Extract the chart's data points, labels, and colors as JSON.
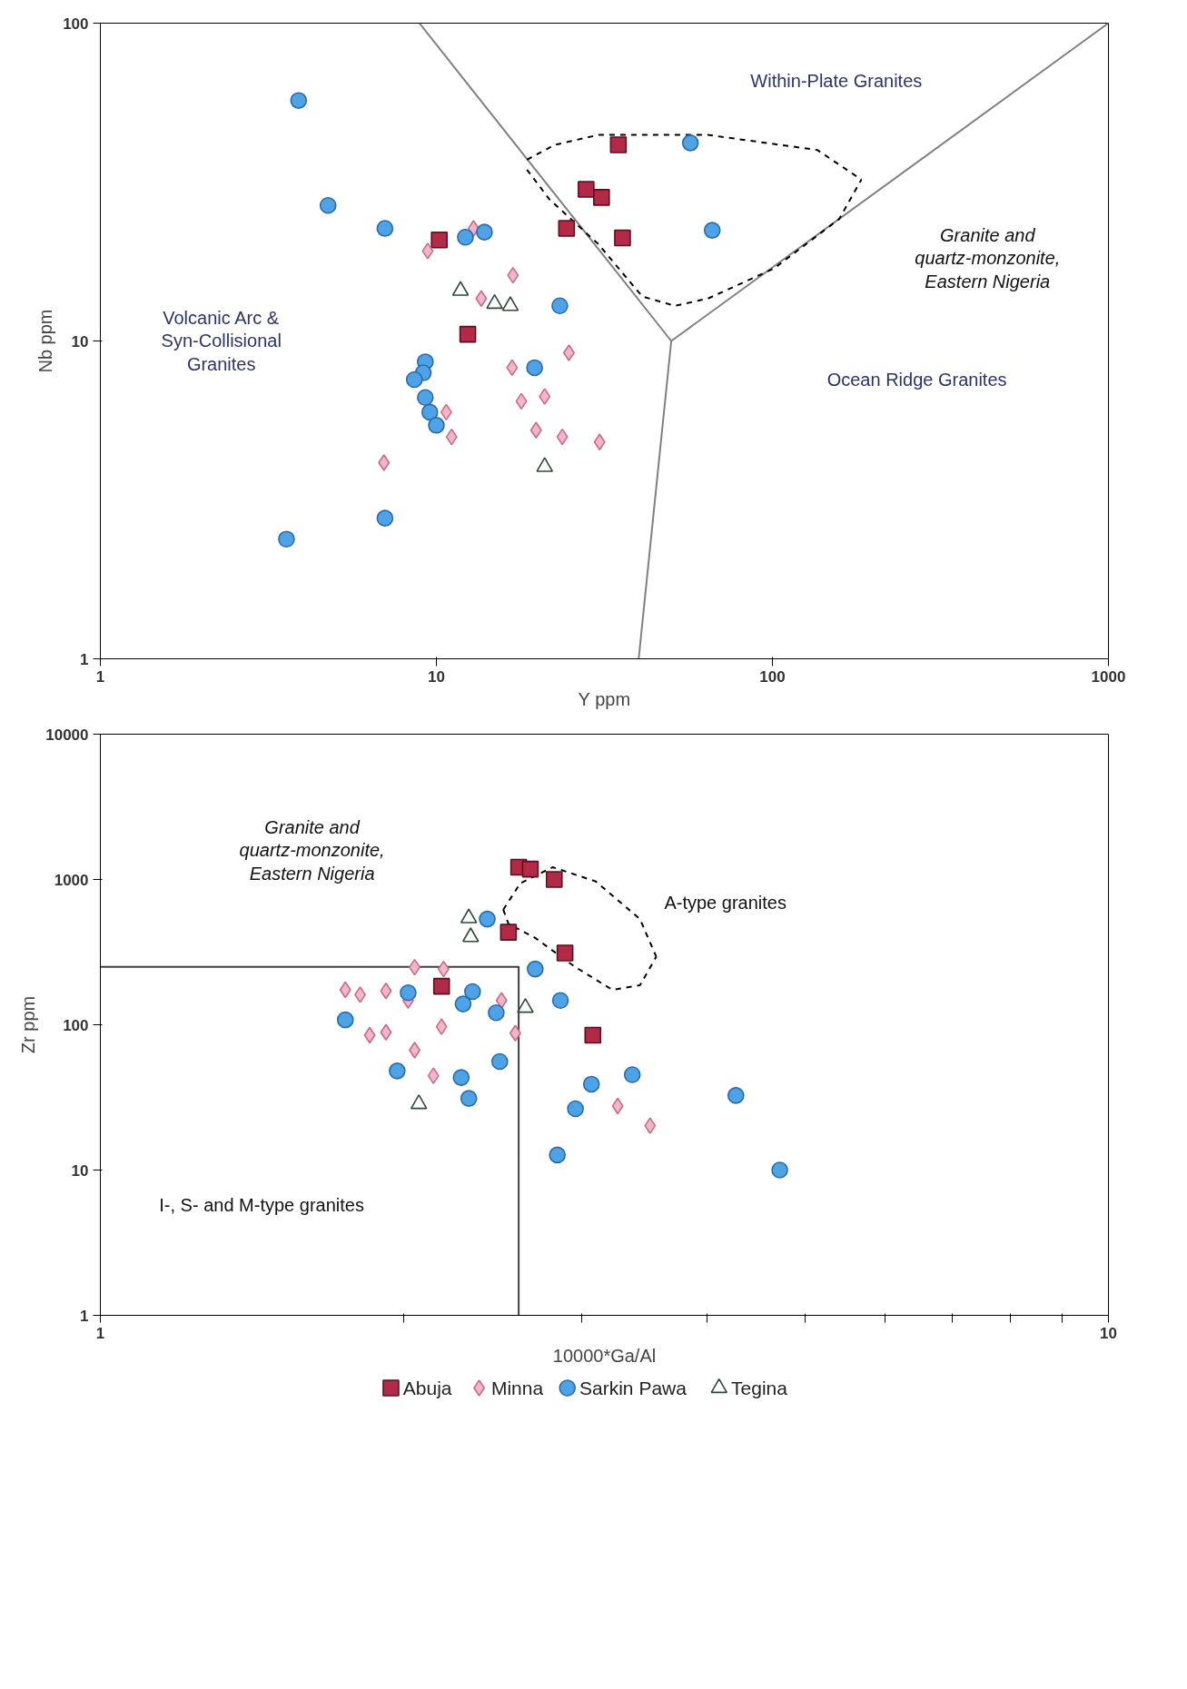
{
  "chart_data": [
    {
      "type": "scatter",
      "xlabel": "Y ppm",
      "ylabel": "Nb ppm",
      "log": "xy",
      "grid": false,
      "xlim": [
        1,
        1000
      ],
      "ylim": [
        1,
        100
      ],
      "xticks": [
        1,
        10,
        100,
        1000
      ],
      "yticks": [
        1,
        10,
        100
      ],
      "annotations": [
        "Within-Plate Granites",
        "Volcanic Arc &\nSyn-Collisional\nGranites",
        "Ocean Ridge Granites",
        "Granite and\nquartz-monzonite,\nEastern Nigeria"
      ],
      "series": [
        {
          "type": "line",
          "color": "#7f7f7f",
          "line_style": "solid",
          "x": [
            8.9,
            50,
            1000
          ],
          "values": [
            100,
            10,
            100
          ]
        },
        {
          "type": "line",
          "color": "#7f7f7f",
          "line_style": "solid",
          "x": [
            40,
            50
          ],
          "values": [
            1,
            10
          ]
        },
        {
          "type": "line",
          "color": "#000000",
          "line_style": "dashed",
          "x": [
            18.6,
            22.5,
            30.3,
            64.3,
            136,
            184
          ],
          "values": [
            37.2,
            41.4,
            44.5,
            44.5,
            39.9,
            32.2
          ]
        },
        {
          "type": "line",
          "color": "#000000",
          "line_style": "dashed",
          "x": [
            18.6,
            21.7,
            30.3,
            41,
            51.3,
            64.3,
            101,
            158,
            184
          ],
          "values": [
            34.6,
            27.9,
            20.2,
            13.8,
            12.9,
            13.6,
            16.9,
            24.2,
            32.2
          ]
        },
        {
          "color": "#b22a45",
          "marker": "square",
          "x": [
            34.8,
            27.9,
            31.0,
            24.4,
            35.8,
            10.2,
            12.4
          ],
          "values": [
            41.4,
            30.0,
            28.3,
            22.6,
            21.1,
            20.8,
            10.5
          ]
        },
        {
          "color": "#f2b6c6",
          "marker": "diamond",
          "x": [
            9.42,
            12.9,
            16.9,
            13.6,
            24.8,
            16.8,
            17.9,
            21.0,
            10.7,
            11.1,
            19.8,
            23.7,
            30.6,
            6.98
          ],
          "values": [
            19.2,
            22.6,
            16.1,
            13.6,
            9.18,
            8.24,
            6.46,
            6.69,
            5.97,
            4.99,
            5.24,
            4.99,
            4.81,
            4.14
          ]
        },
        {
          "color": "#4ea3e6",
          "marker": "circle",
          "x": [
            3.89,
            4.76,
            7.03,
            12.2,
            13.9,
            23.3,
            57.0,
            66.2,
            19.6,
            9.27,
            9.14,
            8.6,
            9.27,
            9.56,
            10,
            7.03,
            3.58
          ],
          "values": [
            57.1,
            26.7,
            22.6,
            21.2,
            22.0,
            12.9,
            42.0,
            22.3,
            8.24,
            8.6,
            7.94,
            7.56,
            6.64,
            5.97,
            5.43,
            2.77,
            2.38
          ]
        },
        {
          "color": "#2e4a3a",
          "marker": "triangle",
          "x": [
            11.8,
            14.9,
            16.6,
            21.0
          ],
          "values": [
            14.4,
            13.1,
            12.9,
            4.02
          ]
        }
      ]
    },
    {
      "type": "scatter",
      "xlabel": "10000*Ga/Al",
      "ylabel": "Zr ppm",
      "log": "xy",
      "grid": false,
      "legend": "bottom",
      "xlim": [
        1,
        10
      ],
      "ylim": [
        1,
        10000
      ],
      "xticks": [
        1,
        {
          "value": 2,
          "label": null
        },
        {
          "value": 3,
          "label": null
        },
        {
          "value": 4,
          "label": null
        },
        {
          "value": 5,
          "label": null
        },
        {
          "value": 6,
          "label": null
        },
        {
          "value": 7,
          "label": null
        },
        {
          "value": 8,
          "label": null
        },
        {
          "value": 9,
          "label": null
        },
        10
      ],
      "yticks": [
        1,
        10,
        100,
        1000,
        10000
      ],
      "annotations": [
        "Granite and\nquartz-monzonite,\nEastern Nigeria",
        "A-type granites",
        "I-, S- and M-type granites"
      ],
      "series": [
        {
          "type": "line",
          "color": "#404040",
          "line_style": "solid",
          "x": [
            1,
            2.6,
            2.6
          ],
          "values": [
            250,
            250,
            1
          ]
        },
        {
          "type": "line",
          "color": "#000000",
          "line_style": "dashed",
          "x": [
            2.51,
            2.61,
            2.81,
            3.1,
            3.43,
            3.56
          ],
          "values": [
            620,
            942,
            1214,
            970,
            534,
            294
          ]
        },
        {
          "type": "line",
          "color": "#000000",
          "line_style": "dashed",
          "x": [
            2.51,
            2.54,
            2.7,
            2.95,
            3.22,
            3.43,
            3.56
          ],
          "values": [
            620,
            495,
            396,
            253,
            174,
            187,
            294
          ]
        },
        {
          "name": "Abuja",
          "color": "#b22a45",
          "marker": "square",
          "x": [
            2.6,
            2.67,
            2.82,
            2.54,
            2.89,
            2.18,
            3.08
          ],
          "values": [
            1214,
            1178,
            1000,
            433,
            312,
            184,
            84.8
          ]
        },
        {
          "name": "Minna",
          "color": "#f2b6c6",
          "marker": "diamond",
          "x": [
            1.75,
            1.81,
            1.92,
            2.05,
            2.19,
            2.02,
            2.5,
            1.85,
            1.92,
            2.18,
            2.58,
            2.05,
            2.14,
            3.26,
            3.51
          ],
          "values": [
            174,
            161,
            171,
            249,
            242,
            147,
            147,
            84.8,
            88.8,
            97,
            87.5,
            66.8,
            44.6,
            27.6,
            20.2
          ]
        },
        {
          "name": "Sarkin Pawa",
          "color": "#4ea3e6",
          "marker": "circle",
          "x": [
            2.42,
            1.75,
            2.02,
            2.34,
            2.29,
            2.47,
            2.7,
            2.86,
            1.97,
            2.28,
            2.32,
            2.49,
            3.07,
            3.37,
            2.96,
            2.84,
            4.27,
            4.72
          ],
          "values": [
            534,
            108,
            166,
            169,
            139,
            121,
            242,
            147,
            48.1,
            43.3,
            31.1,
            55.8,
            39.0,
            45.3,
            26.4,
            12.7,
            32.6,
            10
          ]
        },
        {
          "name": "Tegina",
          "color": "#2e4a3a",
          "marker": "triangle",
          "x": [
            2.32,
            2.33,
            2.64,
            2.07
          ],
          "values": [
            542,
            402,
            131,
            28.5
          ]
        }
      ]
    }
  ]
}
